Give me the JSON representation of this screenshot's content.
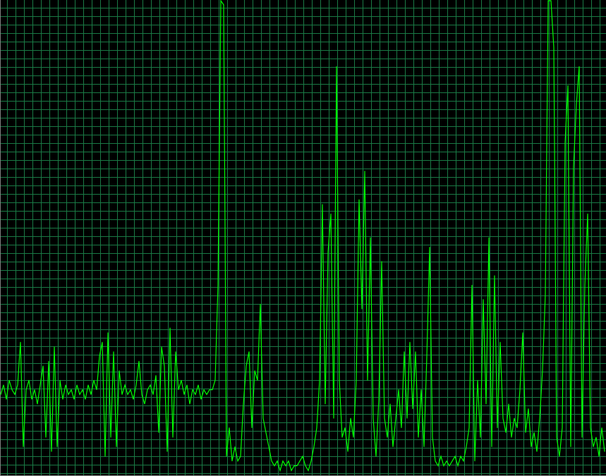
{
  "chart_data": {
    "type": "line",
    "title": "",
    "xlabel": "",
    "ylabel": "",
    "ylim": [
      0,
      100
    ],
    "grid": true,
    "legend": "none",
    "colors": {
      "background": "#000000",
      "grid": "#1a7a45",
      "line": "#00ff00",
      "border": "#808080"
    },
    "series": [
      {
        "values": [
          17,
          19,
          16,
          20,
          18,
          17,
          19,
          28,
          6,
          18,
          20,
          16,
          18,
          15,
          19,
          23,
          8,
          24,
          5,
          27,
          6,
          20,
          16,
          19,
          17,
          18,
          16,
          19,
          17,
          18,
          16,
          19,
          17,
          20,
          18,
          25,
          28,
          4,
          30,
          8,
          26,
          6,
          22,
          17,
          19,
          17,
          18,
          16,
          19,
          24,
          17,
          15,
          18,
          19,
          17,
          21,
          9,
          27,
          23,
          5,
          31,
          8,
          26,
          18,
          20,
          17,
          19,
          15,
          18,
          17,
          19,
          16,
          18,
          17,
          18,
          18,
          20,
          40,
          100,
          99,
          4,
          10,
          3,
          6,
          3,
          4,
          15,
          23,
          26,
          10,
          22,
          20,
          36,
          12,
          9,
          6,
          3,
          2,
          3,
          1,
          3,
          2,
          3,
          1,
          2,
          2,
          3,
          4,
          2,
          1,
          3,
          6,
          10,
          20,
          57,
          15,
          47,
          55,
          12,
          86,
          20,
          8,
          10,
          5,
          12,
          8,
          20,
          58,
          35,
          64,
          20,
          50,
          12,
          4,
          16,
          45,
          12,
          8,
          15,
          6,
          12,
          18,
          10,
          26,
          12,
          28,
          14,
          26,
          8,
          18,
          6,
          25,
          48,
          8,
          3,
          2,
          4,
          2,
          3,
          2,
          3,
          4,
          2,
          4,
          3,
          6,
          10,
          40,
          3,
          20,
          8,
          37,
          15,
          50,
          6,
          42,
          10,
          28,
          12,
          9,
          15,
          8,
          12,
          10,
          18,
          30,
          9,
          14,
          6,
          9,
          5,
          12,
          22,
          38,
          100,
          100,
          90,
          8,
          4,
          10,
          70,
          82,
          6,
          65,
          78,
          86,
          8,
          40,
          55,
          10,
          6,
          8,
          4,
          10,
          5
        ]
      }
    ]
  }
}
